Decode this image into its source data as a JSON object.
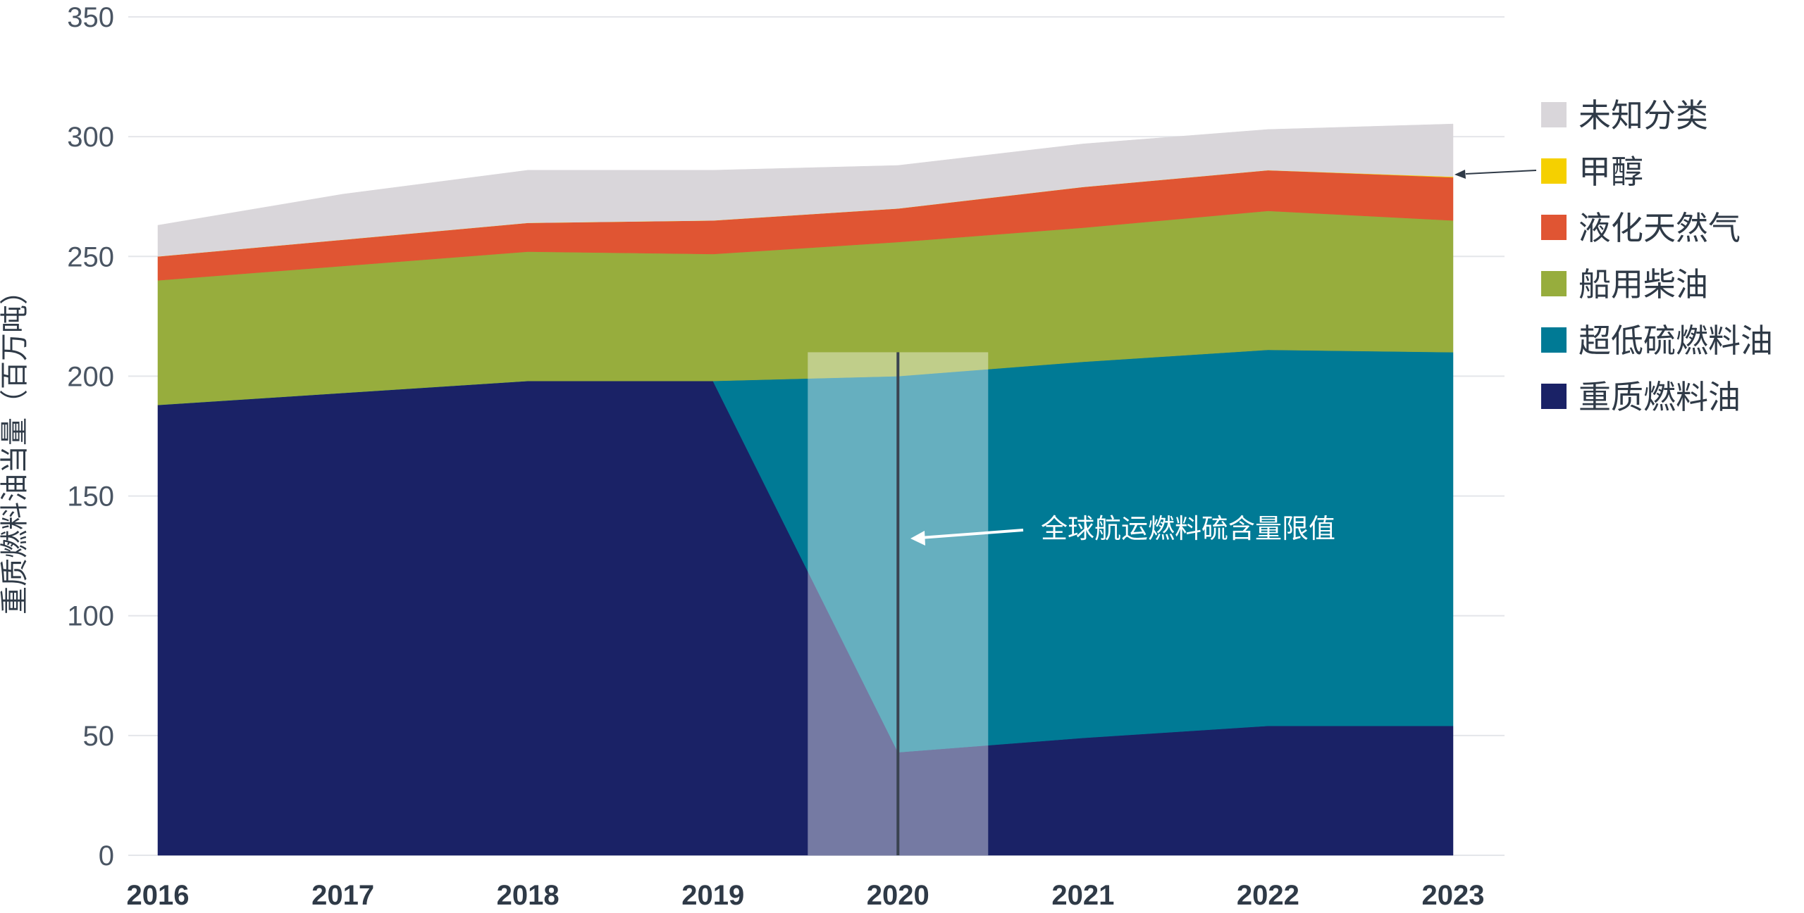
{
  "chart_data": {
    "type": "area",
    "stacked": true,
    "title": "",
    "xlabel": "",
    "ylabel": "重质燃料油当量（百万吨）",
    "x": [
      "2016",
      "2017",
      "2018",
      "2019",
      "2020",
      "2021",
      "2022",
      "2023"
    ],
    "ylim": [
      0,
      350
    ],
    "yticks": [
      "0",
      "50",
      "100",
      "150",
      "200",
      "250",
      "300",
      "350"
    ],
    "grid": true,
    "legend_position": "right",
    "series": [
      {
        "name": "重质燃料油",
        "color": "#1a2266",
        "values": [
          188,
          193,
          198,
          198,
          43,
          49,
          54,
          54
        ]
      },
      {
        "name": "超低硫燃料油",
        "color": "#007a95",
        "values": [
          0,
          0,
          0,
          0,
          157,
          157,
          157,
          156
        ]
      },
      {
        "name": "船用柴油",
        "color": "#97ad3d",
        "values": [
          52,
          53,
          54,
          53,
          56,
          56,
          58,
          55
        ]
      },
      {
        "name": "液化天然气",
        "color": "#e05533",
        "values": [
          10,
          11,
          12,
          14,
          14,
          17,
          17,
          18
        ]
      },
      {
        "name": "甲醇",
        "color": "#f5d000",
        "values": [
          0,
          0,
          0,
          0,
          0,
          0,
          0,
          0.3
        ]
      },
      {
        "name": "未知分类",
        "color": "#d9d6da",
        "values": [
          13,
          19,
          22,
          21,
          18,
          18,
          17,
          22
        ]
      }
    ],
    "legend_order": [
      "未知分类",
      "甲醇",
      "液化天然气",
      "船用柴油",
      "超低硫燃料油",
      "重质燃料油"
    ],
    "highlight": {
      "x": "2020",
      "label": "全球航运燃料硫含量限值"
    }
  }
}
